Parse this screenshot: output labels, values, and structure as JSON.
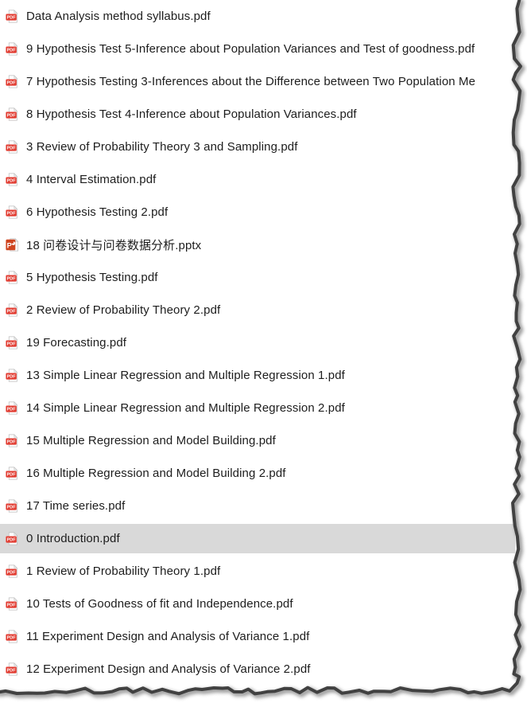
{
  "colors": {
    "pdf_red": "#e13b30",
    "ppt_orange": "#cf4520",
    "selected_bg": "#d9d9d9",
    "text": "#1d1d1d"
  },
  "icons": {
    "pdf_badge_label": "PDF",
    "ppt_badge_letter": "P"
  },
  "file_list": {
    "items": [
      {
        "name": "Data Analysis method syllabus.pdf",
        "type": "pdf",
        "selected": false
      },
      {
        "name": "9 Hypothesis Test 5-Inference about Population Variances and Test of goodness.pdf",
        "type": "pdf",
        "selected": false
      },
      {
        "name": "7 Hypothesis Testing 3-Inferences about the Difference between Two Population Me",
        "type": "pdf",
        "selected": false
      },
      {
        "name": "8 Hypothesis Test 4-Inference about Population Variances.pdf",
        "type": "pdf",
        "selected": false
      },
      {
        "name": "3 Review of Probability Theory 3 and Sampling.pdf",
        "type": "pdf",
        "selected": false
      },
      {
        "name": "4 Interval Estimation.pdf",
        "type": "pdf",
        "selected": false
      },
      {
        "name": "6 Hypothesis Testing 2.pdf",
        "type": "pdf",
        "selected": false
      },
      {
        "name": "18 问卷设计与问卷数据分析.pptx",
        "type": "pptx",
        "selected": false
      },
      {
        "name": "5 Hypothesis Testing.pdf",
        "type": "pdf",
        "selected": false
      },
      {
        "name": "2 Review of Probability Theory 2.pdf",
        "type": "pdf",
        "selected": false
      },
      {
        "name": "19 Forecasting.pdf",
        "type": "pdf",
        "selected": false
      },
      {
        "name": "13 Simple Linear Regression and Multiple Regression 1.pdf",
        "type": "pdf",
        "selected": false
      },
      {
        "name": "14 Simple Linear Regression and Multiple Regression 2.pdf",
        "type": "pdf",
        "selected": false
      },
      {
        "name": "15 Multiple Regression and Model Building.pdf",
        "type": "pdf",
        "selected": false
      },
      {
        "name": "16 Multiple Regression and Model Building 2.pdf",
        "type": "pdf",
        "selected": false
      },
      {
        "name": "17 Time series.pdf",
        "type": "pdf",
        "selected": false
      },
      {
        "name": "0 Introduction.pdf",
        "type": "pdf",
        "selected": true
      },
      {
        "name": "1 Review of Probability Theory 1.pdf",
        "type": "pdf",
        "selected": false
      },
      {
        "name": "10 Tests of Goodness of fit and Independence.pdf",
        "type": "pdf",
        "selected": false
      },
      {
        "name": "11 Experiment Design and Analysis of Variance 1.pdf",
        "type": "pdf",
        "selected": false
      },
      {
        "name": "12 Experiment Design and Analysis of Variance 2.pdf",
        "type": "pdf",
        "selected": false
      }
    ]
  }
}
